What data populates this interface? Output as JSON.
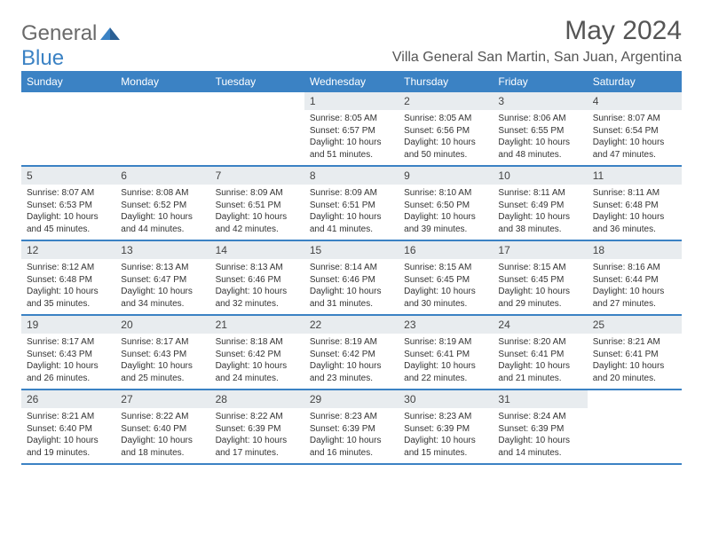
{
  "logo": {
    "text1": "General",
    "text2": "Blue"
  },
  "title": "May 2024",
  "location": "Villa General San Martin, San Juan, Argentina",
  "colors": {
    "header_bg": "#3b82c4",
    "header_text": "#ffffff",
    "daynum_bg": "#e8ecef",
    "border": "#3b82c4",
    "text": "#333333",
    "title_text": "#555555"
  },
  "weekdays": [
    "Sunday",
    "Monday",
    "Tuesday",
    "Wednesday",
    "Thursday",
    "Friday",
    "Saturday"
  ],
  "weeks": [
    [
      {
        "n": "",
        "sr": "",
        "ss": "",
        "dl": ""
      },
      {
        "n": "",
        "sr": "",
        "ss": "",
        "dl": ""
      },
      {
        "n": "",
        "sr": "",
        "ss": "",
        "dl": ""
      },
      {
        "n": "1",
        "sr": "Sunrise: 8:05 AM",
        "ss": "Sunset: 6:57 PM",
        "dl": "Daylight: 10 hours and 51 minutes."
      },
      {
        "n": "2",
        "sr": "Sunrise: 8:05 AM",
        "ss": "Sunset: 6:56 PM",
        "dl": "Daylight: 10 hours and 50 minutes."
      },
      {
        "n": "3",
        "sr": "Sunrise: 8:06 AM",
        "ss": "Sunset: 6:55 PM",
        "dl": "Daylight: 10 hours and 48 minutes."
      },
      {
        "n": "4",
        "sr": "Sunrise: 8:07 AM",
        "ss": "Sunset: 6:54 PM",
        "dl": "Daylight: 10 hours and 47 minutes."
      }
    ],
    [
      {
        "n": "5",
        "sr": "Sunrise: 8:07 AM",
        "ss": "Sunset: 6:53 PM",
        "dl": "Daylight: 10 hours and 45 minutes."
      },
      {
        "n": "6",
        "sr": "Sunrise: 8:08 AM",
        "ss": "Sunset: 6:52 PM",
        "dl": "Daylight: 10 hours and 44 minutes."
      },
      {
        "n": "7",
        "sr": "Sunrise: 8:09 AM",
        "ss": "Sunset: 6:51 PM",
        "dl": "Daylight: 10 hours and 42 minutes."
      },
      {
        "n": "8",
        "sr": "Sunrise: 8:09 AM",
        "ss": "Sunset: 6:51 PM",
        "dl": "Daylight: 10 hours and 41 minutes."
      },
      {
        "n": "9",
        "sr": "Sunrise: 8:10 AM",
        "ss": "Sunset: 6:50 PM",
        "dl": "Daylight: 10 hours and 39 minutes."
      },
      {
        "n": "10",
        "sr": "Sunrise: 8:11 AM",
        "ss": "Sunset: 6:49 PM",
        "dl": "Daylight: 10 hours and 38 minutes."
      },
      {
        "n": "11",
        "sr": "Sunrise: 8:11 AM",
        "ss": "Sunset: 6:48 PM",
        "dl": "Daylight: 10 hours and 36 minutes."
      }
    ],
    [
      {
        "n": "12",
        "sr": "Sunrise: 8:12 AM",
        "ss": "Sunset: 6:48 PM",
        "dl": "Daylight: 10 hours and 35 minutes."
      },
      {
        "n": "13",
        "sr": "Sunrise: 8:13 AM",
        "ss": "Sunset: 6:47 PM",
        "dl": "Daylight: 10 hours and 34 minutes."
      },
      {
        "n": "14",
        "sr": "Sunrise: 8:13 AM",
        "ss": "Sunset: 6:46 PM",
        "dl": "Daylight: 10 hours and 32 minutes."
      },
      {
        "n": "15",
        "sr": "Sunrise: 8:14 AM",
        "ss": "Sunset: 6:46 PM",
        "dl": "Daylight: 10 hours and 31 minutes."
      },
      {
        "n": "16",
        "sr": "Sunrise: 8:15 AM",
        "ss": "Sunset: 6:45 PM",
        "dl": "Daylight: 10 hours and 30 minutes."
      },
      {
        "n": "17",
        "sr": "Sunrise: 8:15 AM",
        "ss": "Sunset: 6:45 PM",
        "dl": "Daylight: 10 hours and 29 minutes."
      },
      {
        "n": "18",
        "sr": "Sunrise: 8:16 AM",
        "ss": "Sunset: 6:44 PM",
        "dl": "Daylight: 10 hours and 27 minutes."
      }
    ],
    [
      {
        "n": "19",
        "sr": "Sunrise: 8:17 AM",
        "ss": "Sunset: 6:43 PM",
        "dl": "Daylight: 10 hours and 26 minutes."
      },
      {
        "n": "20",
        "sr": "Sunrise: 8:17 AM",
        "ss": "Sunset: 6:43 PM",
        "dl": "Daylight: 10 hours and 25 minutes."
      },
      {
        "n": "21",
        "sr": "Sunrise: 8:18 AM",
        "ss": "Sunset: 6:42 PM",
        "dl": "Daylight: 10 hours and 24 minutes."
      },
      {
        "n": "22",
        "sr": "Sunrise: 8:19 AM",
        "ss": "Sunset: 6:42 PM",
        "dl": "Daylight: 10 hours and 23 minutes."
      },
      {
        "n": "23",
        "sr": "Sunrise: 8:19 AM",
        "ss": "Sunset: 6:41 PM",
        "dl": "Daylight: 10 hours and 22 minutes."
      },
      {
        "n": "24",
        "sr": "Sunrise: 8:20 AM",
        "ss": "Sunset: 6:41 PM",
        "dl": "Daylight: 10 hours and 21 minutes."
      },
      {
        "n": "25",
        "sr": "Sunrise: 8:21 AM",
        "ss": "Sunset: 6:41 PM",
        "dl": "Daylight: 10 hours and 20 minutes."
      }
    ],
    [
      {
        "n": "26",
        "sr": "Sunrise: 8:21 AM",
        "ss": "Sunset: 6:40 PM",
        "dl": "Daylight: 10 hours and 19 minutes."
      },
      {
        "n": "27",
        "sr": "Sunrise: 8:22 AM",
        "ss": "Sunset: 6:40 PM",
        "dl": "Daylight: 10 hours and 18 minutes."
      },
      {
        "n": "28",
        "sr": "Sunrise: 8:22 AM",
        "ss": "Sunset: 6:39 PM",
        "dl": "Daylight: 10 hours and 17 minutes."
      },
      {
        "n": "29",
        "sr": "Sunrise: 8:23 AM",
        "ss": "Sunset: 6:39 PM",
        "dl": "Daylight: 10 hours and 16 minutes."
      },
      {
        "n": "30",
        "sr": "Sunrise: 8:23 AM",
        "ss": "Sunset: 6:39 PM",
        "dl": "Daylight: 10 hours and 15 minutes."
      },
      {
        "n": "31",
        "sr": "Sunrise: 8:24 AM",
        "ss": "Sunset: 6:39 PM",
        "dl": "Daylight: 10 hours and 14 minutes."
      },
      {
        "n": "",
        "sr": "",
        "ss": "",
        "dl": ""
      }
    ]
  ]
}
